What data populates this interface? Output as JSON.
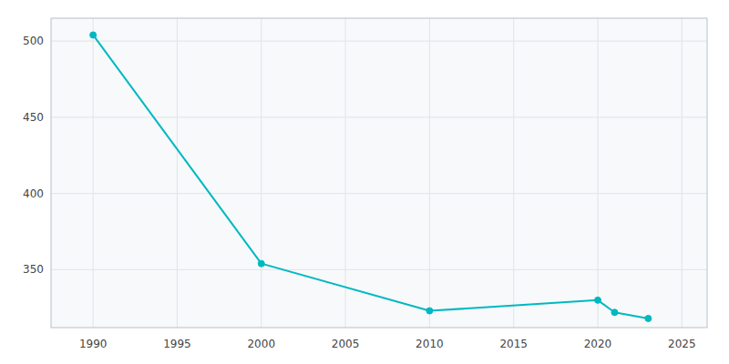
{
  "chart_data": {
    "type": "line",
    "x": [
      1990,
      2000,
      2010,
      2020,
      2021,
      2023
    ],
    "values": [
      504,
      354,
      323,
      330,
      322,
      318
    ],
    "color": "#00b8c0",
    "marker": "circle",
    "xlim": [
      1987.5,
      2026.5
    ],
    "ylim": [
      312,
      515
    ],
    "xticks": [
      1990,
      1995,
      2000,
      2005,
      2010,
      2015,
      2020,
      2025
    ],
    "yticks": [
      350,
      400,
      450,
      500
    ],
    "grid": true
  }
}
